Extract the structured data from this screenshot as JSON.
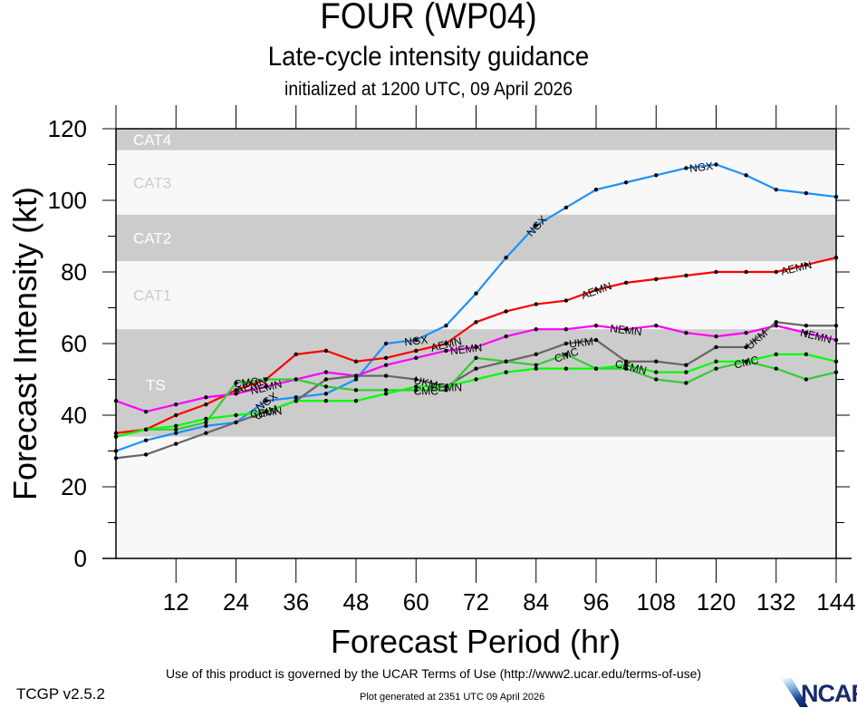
{
  "header": {
    "title": "FOUR (WP04)",
    "subtitle": "Late-cycle intensity guidance",
    "initialized": "initialized at 1200 UTC, 09 April 2026"
  },
  "footer": {
    "terms": "Use of this product is governed by the UCAR Terms of Use (http://www2.ucar.edu/terms-of-use)",
    "version": "TCGP v2.5.2",
    "generated": "Plot generated at 2351 UTC   09 April 2026",
    "logo_text": "NCAR"
  },
  "chart_data": {
    "type": "line",
    "title": "FOUR (WP04)",
    "subtitle": "Late-cycle intensity guidance",
    "xlabel": "Forecast Period (hr)",
    "ylabel": "Forecast Intensity (kt)",
    "xlim": [
      0,
      144
    ],
    "ylim": [
      0,
      120
    ],
    "xticks": [
      12,
      24,
      36,
      48,
      60,
      72,
      84,
      96,
      108,
      120,
      132,
      144
    ],
    "yticks": [
      0,
      20,
      40,
      60,
      80,
      100,
      120
    ],
    "grid": false,
    "legend": "inline labels on lines",
    "bands": [
      {
        "label": "TS",
        "from": 34,
        "to": 64,
        "shaded": true
      },
      {
        "label": "CAT1",
        "from": 64,
        "to": 83,
        "shaded": false
      },
      {
        "label": "CAT2",
        "from": 83,
        "to": 96,
        "shaded": true
      },
      {
        "label": "CAT3",
        "from": 96,
        "to": 114,
        "shaded": false
      },
      {
        "label": "CAT4",
        "from": 114,
        "to": 120,
        "shaded": true
      }
    ],
    "x": [
      0,
      6,
      12,
      18,
      24,
      30,
      36,
      42,
      48,
      54,
      60,
      66,
      72,
      78,
      84,
      90,
      96,
      102,
      108,
      114,
      120,
      126,
      132,
      138,
      144
    ],
    "series": [
      {
        "name": "NGX",
        "color": "#1e90ff",
        "values": [
          30,
          33,
          35,
          37,
          38,
          44,
          45,
          46,
          50,
          60,
          61,
          65,
          74,
          84,
          93,
          98,
          103,
          105,
          107,
          109,
          110,
          107,
          103,
          102,
          101
        ]
      },
      {
        "name": "AEMN",
        "color": "#ff0000",
        "values": [
          35,
          36,
          40,
          43,
          47,
          50,
          57,
          58,
          55,
          56,
          58,
          60,
          66,
          69,
          71,
          72,
          75,
          77,
          78,
          79,
          80,
          80,
          80,
          82,
          84
        ]
      },
      {
        "name": "NEMN",
        "color": "#ff00ff",
        "values": [
          44,
          41,
          43,
          45,
          46,
          48,
          50,
          52,
          51,
          54,
          56,
          58,
          59,
          62,
          64,
          64,
          65,
          64,
          65,
          63,
          62,
          63,
          65,
          63,
          61
        ]
      },
      {
        "name": "UKM",
        "color": "#666666",
        "values": [
          28,
          29,
          32,
          35,
          38,
          41,
          44,
          50,
          51,
          51,
          50,
          48,
          53,
          55,
          57,
          60,
          61,
          55,
          55,
          54,
          59,
          59,
          66,
          65,
          65
        ]
      },
      {
        "name": "CMC",
        "color": "#33cc33",
        "values": [
          34,
          36,
          36,
          38,
          49,
          50,
          50,
          48,
          47,
          47,
          47,
          47,
          56,
          55,
          54,
          57,
          53,
          53,
          50,
          49,
          53,
          55,
          53,
          50,
          52
        ]
      },
      {
        "name": "CEMN",
        "color": "#00ff00",
        "values": [
          34,
          36,
          37,
          39,
          40,
          41,
          44,
          44,
          44,
          46,
          48,
          48,
          50,
          52,
          53,
          53,
          53,
          54,
          52,
          52,
          55,
          55,
          57,
          57,
          55
        ]
      }
    ],
    "band_colors": {
      "shaded": "#cccccc",
      "clear": "#f8f8f8",
      "shaded_text": "#ffffff",
      "clear_text": "#cccccc"
    }
  }
}
